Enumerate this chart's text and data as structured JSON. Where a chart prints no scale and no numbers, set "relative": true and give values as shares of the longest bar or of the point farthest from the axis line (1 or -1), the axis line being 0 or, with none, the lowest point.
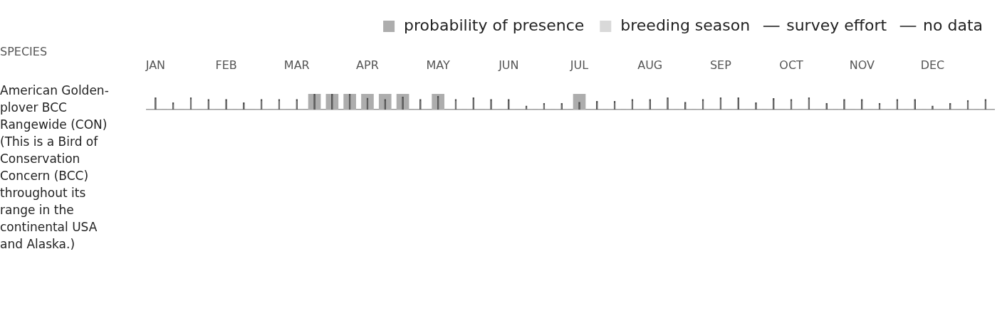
{
  "chart_data": {
    "type": "bar",
    "relative": true,
    "ylabel": "American Golden-plover BCC Rangewide (CON) (This is a Bird of Conservation Concern (BCC) throughout its range in the continental USA and Alaska.)",
    "annotations": [
      "SPECIES"
    ],
    "categories": [
      "JAN",
      null,
      null,
      null,
      "FEB",
      null,
      null,
      null,
      "MAR",
      null,
      null,
      null,
      "APR",
      null,
      null,
      null,
      "MAY",
      null,
      null,
      null,
      "JUN",
      null,
      null,
      null,
      "JUL",
      null,
      null,
      null,
      "AUG",
      null,
      null,
      null,
      "SEP",
      null,
      null,
      null,
      "OCT",
      null,
      null,
      null,
      "NOV",
      null,
      null,
      null,
      "DEC",
      null,
      null,
      null
    ],
    "series": [
      {
        "name": "probability of presence",
        "color": "#adadad",
        "values": [
          0,
          0,
          0,
          0,
          0,
          0,
          0,
          0,
          0,
          1,
          1,
          1,
          1,
          1,
          1,
          0,
          1,
          0,
          0,
          0,
          0,
          0,
          0,
          0,
          1,
          0,
          0,
          0,
          0,
          0,
          0,
          0,
          0,
          0,
          0,
          0,
          0,
          0,
          0,
          0,
          0,
          0,
          0,
          0,
          0,
          0,
          0,
          0
        ]
      },
      {
        "name": "breeding season",
        "color": "#d9d9d9",
        "values": [
          null,
          null,
          null,
          null,
          null,
          null,
          null,
          null,
          null,
          null,
          null,
          null,
          null,
          null,
          null,
          null,
          null,
          null,
          null,
          null,
          null,
          null,
          null,
          null,
          null,
          null,
          null,
          null,
          null,
          null,
          null,
          null,
          null,
          null,
          null,
          null,
          null,
          null,
          null,
          null,
          null,
          null,
          null,
          null,
          null,
          null,
          null,
          null
        ]
      },
      {
        "name": "survey effort",
        "color": "#4d4d4d",
        "values": [
          0.76,
          0.44,
          0.76,
          0.65,
          0.65,
          0.44,
          0.65,
          0.65,
          0.65,
          1,
          1,
          1,
          0.74,
          0.65,
          0.82,
          0.65,
          0.86,
          0.65,
          0.76,
          0.65,
          0.65,
          0.24,
          0.41,
          0.41,
          0.47,
          0.53,
          0.53,
          0.65,
          0.65,
          0.76,
          0.47,
          0.65,
          0.76,
          0.76,
          0.44,
          0.71,
          0.65,
          0.76,
          0.41,
          0.65,
          0.65,
          0.41,
          0.65,
          0.65,
          0.24,
          0.41,
          0.59,
          0.65
        ]
      },
      {
        "name": "no data",
        "color": "#555555",
        "values": [
          null,
          null,
          null,
          null,
          null,
          null,
          null,
          null,
          null,
          null,
          null,
          null,
          null,
          null,
          null,
          null,
          null,
          null,
          null,
          null,
          null,
          null,
          null,
          null,
          null,
          null,
          null,
          null,
          null,
          null,
          null,
          null,
          null,
          null,
          null,
          null,
          null,
          null,
          null,
          null,
          null,
          null,
          null,
          null,
          null,
          null,
          null,
          null
        ]
      }
    ],
    "grid": false,
    "legend": "top right"
  }
}
